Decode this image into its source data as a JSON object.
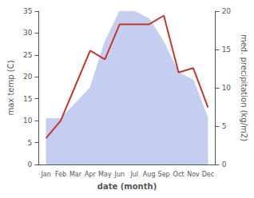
{
  "chart_data": {
    "type": "line",
    "categories": [
      "Jan",
      "Feb",
      "Mar",
      "Apr",
      "May",
      "Jun",
      "Jul",
      "Aug",
      "Sep",
      "Oct",
      "Nov",
      "Dec"
    ],
    "series": [
      {
        "type": "area",
        "color": "#c5cef0",
        "axis": "y2",
        "values": [
          6,
          6,
          8,
          10,
          16,
          20,
          20,
          19,
          16,
          12,
          11,
          6
        ]
      },
      {
        "type": "line",
        "color": "#c0392b",
        "values": [
          6,
          10,
          18,
          26,
          24,
          32,
          32,
          32,
          34,
          21,
          22,
          13
        ]
      }
    ],
    "xlabel": "date (month)",
    "ylabel": "max temp (C)",
    "y2label": "med. precipitation (kg/m2)",
    "ylim": [
      0,
      35
    ],
    "yticks": [
      0,
      5,
      10,
      15,
      20,
      25,
      30,
      35
    ],
    "y2lim": [
      0,
      20
    ],
    "y2ticks": [
      0,
      5,
      10,
      15,
      20
    ],
    "grid": false
  }
}
